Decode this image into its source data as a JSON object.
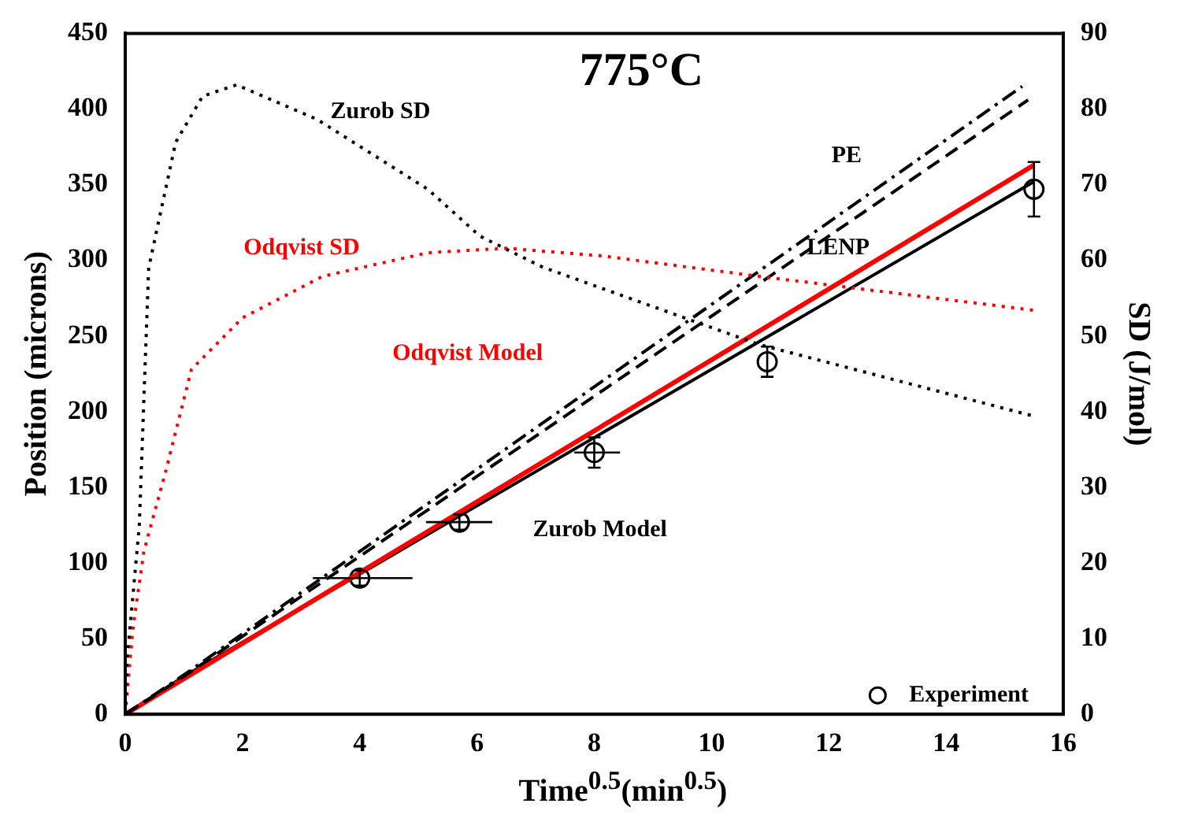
{
  "chart_data": {
    "type": "line",
    "title": "775°C",
    "xlabel": "Time$^{0.5}$(min$^{0.5}$)",
    "ylabel": "Position (microns)",
    "y2label": "SD (J/mol)",
    "xlim": [
      0,
      16
    ],
    "xticks": [
      0,
      2,
      4,
      6,
      8,
      10,
      12,
      14,
      16
    ],
    "ylim": [
      0,
      450
    ],
    "yticks": [
      0,
      50,
      100,
      150,
      200,
      250,
      300,
      350,
      400,
      450
    ],
    "y2lim": [
      0,
      90
    ],
    "y2ticks": [
      0,
      10,
      20,
      30,
      40,
      50,
      60,
      70,
      80,
      90
    ],
    "grid": false,
    "legend": "bottom right",
    "marker": "none",
    "series": [
      {
        "type": "line",
        "axis": "y2",
        "color": "#000000",
        "line_style": "dotted",
        "x": [
          0,
          0.03,
          0.24,
          0.4,
          0.86,
          1.32,
          1.9,
          3.28,
          5.16,
          6.05,
          7.12,
          10.8,
          15.5
        ],
        "values": [
          0,
          7,
          25,
          59,
          75.6,
          81.7,
          83.2,
          78.6,
          69.4,
          63.2,
          59.1,
          48.9,
          39.4
        ]
      },
      {
        "type": "line",
        "axis": "y2",
        "color": "#ff0000",
        "line_style": "dotted",
        "x": [
          0,
          0.13,
          0.32,
          0.68,
          1.13,
          2.0,
          3.37,
          5.16,
          6.5,
          8.12,
          10.8,
          15.5
        ],
        "values": [
          0,
          11.3,
          21.6,
          31.8,
          45.6,
          52.4,
          57.9,
          61,
          61.6,
          60.6,
          57.9,
          53.4
        ]
      },
      {
        "type": "line",
        "color": "#000000",
        "line_style": "dashdot",
        "x": [
          0,
          1,
          15.3
        ],
        "values": [
          0,
          26,
          415
        ]
      },
      {
        "type": "line",
        "color": "#000000",
        "line_style": "dashed",
        "x": [
          0,
          1,
          15.4
        ],
        "values": [
          0,
          25,
          406
        ]
      },
      {
        "type": "line",
        "color": "#ff0000",
        "line_style": "solid",
        "x": [
          0,
          15.5
        ],
        "values": [
          0,
          363
        ]
      },
      {
        "type": "line",
        "color": "#000000",
        "line_style": "solid",
        "x": [
          0,
          1,
          15.5
        ],
        "values": [
          0,
          25,
          352
        ]
      },
      {
        "type": "scatter",
        "name": "Experiment",
        "color": "#000000",
        "marker": "circle",
        "x": [
          4,
          5.7,
          8,
          10.95,
          15.5
        ],
        "values": [
          90,
          127,
          173,
          233,
          347
        ],
        "errors": [
          5,
          5,
          10,
          10,
          [
            329,
            365
          ]
        ],
        "xerrors": [
          [
            3.2,
            4.9
          ],
          [
            5.13,
            6.26
          ],
          [
            7.66,
            8.44
          ],
          null,
          null
        ]
      }
    ],
    "annotations": [
      "Zurob SD",
      "Odqvist SD",
      "Odqvist Model",
      "Zurob Model",
      "PE",
      "LENP"
    ]
  }
}
